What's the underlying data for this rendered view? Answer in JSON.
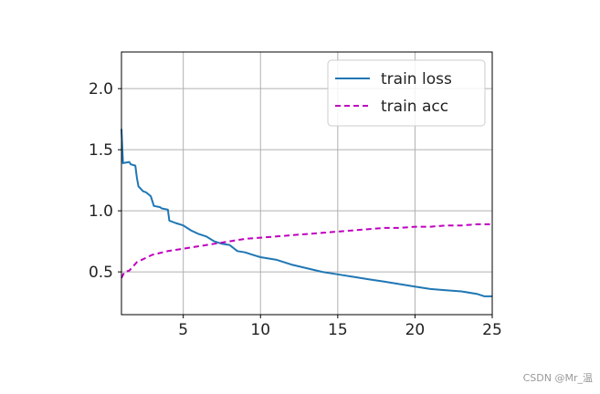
{
  "chart_data": {
    "type": "line",
    "xlim": [
      1,
      25
    ],
    "ylim": [
      0.15,
      2.3
    ],
    "xticks": [
      5,
      10,
      15,
      20,
      25
    ],
    "yticks": [
      0.5,
      1.0,
      1.5,
      2.0
    ],
    "xtick_labels": [
      "5",
      "10",
      "15",
      "20",
      "25"
    ],
    "ytick_labels": [
      "0.5",
      "1.0",
      "1.5",
      "2.0"
    ],
    "grid": true,
    "legend_position": "top-right",
    "series": [
      {
        "name": "train loss",
        "color": "#1f77b4",
        "style": "solid",
        "x": [
          1.0,
          1.1,
          1.5,
          1.6,
          1.9,
          2.0,
          2.1,
          2.4,
          2.6,
          2.9,
          3.1,
          3.5,
          3.6,
          4.0,
          4.1,
          4.5,
          5.0,
          5.5,
          6.0,
          6.5,
          7.0,
          7.5,
          8.0,
          8.5,
          9.0,
          9.5,
          10.0,
          11.0,
          12.0,
          13.0,
          14.0,
          15.0,
          16.0,
          17.0,
          18.0,
          19.0,
          20.0,
          21.0,
          22.0,
          23.0,
          24.0,
          24.5,
          25.0
        ],
        "y": [
          1.67,
          1.39,
          1.4,
          1.38,
          1.37,
          1.27,
          1.2,
          1.16,
          1.15,
          1.12,
          1.04,
          1.03,
          1.02,
          1.01,
          0.92,
          0.9,
          0.88,
          0.84,
          0.81,
          0.79,
          0.75,
          0.73,
          0.72,
          0.67,
          0.66,
          0.64,
          0.62,
          0.6,
          0.56,
          0.53,
          0.5,
          0.48,
          0.46,
          0.44,
          0.42,
          0.4,
          0.38,
          0.36,
          0.35,
          0.34,
          0.32,
          0.3,
          0.3
        ]
      },
      {
        "name": "train acc",
        "color": "#bf00bf",
        "style": "dashed",
        "x": [
          1.0,
          1.2,
          1.5,
          2.0,
          2.5,
          3.0,
          4.0,
          5.0,
          6.0,
          7.0,
          8.0,
          9.0,
          10.0,
          11.0,
          12.0,
          13.0,
          14.0,
          15.0,
          16.0,
          17.0,
          18.0,
          19.0,
          20.0,
          21.0,
          22.0,
          23.0,
          24.0,
          25.0
        ],
        "y": [
          0.45,
          0.5,
          0.51,
          0.58,
          0.61,
          0.64,
          0.67,
          0.69,
          0.71,
          0.73,
          0.75,
          0.77,
          0.78,
          0.79,
          0.8,
          0.81,
          0.82,
          0.83,
          0.84,
          0.85,
          0.86,
          0.86,
          0.87,
          0.87,
          0.88,
          0.88,
          0.89,
          0.89
        ]
      }
    ]
  },
  "watermark": "CSDN @Mr_温"
}
